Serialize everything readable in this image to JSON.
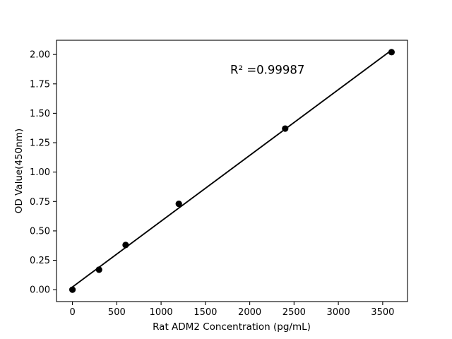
{
  "figure": {
    "background_color": "#ffffff",
    "foreground_color": "#000000"
  },
  "chart_data": {
    "type": "scatter",
    "title": "",
    "xlabel": "Rat ADM2 Concentration (pg/mL)",
    "ylabel": "OD Value(450nm)",
    "x": [
      0,
      300,
      600,
      1200,
      2400,
      3600
    ],
    "y": [
      0.0,
      0.17,
      0.38,
      0.73,
      1.37,
      2.02
    ],
    "fit_line": {
      "x": [
        0,
        3600
      ],
      "y": [
        0.023,
        2.037
      ]
    },
    "r_squared_label": "R² =0.99987",
    "annotation_position": {
      "x": 2200,
      "y": 1.87
    },
    "xlim": [
      -180,
      3780
    ],
    "ylim": [
      -0.101,
      2.121
    ],
    "xticks": {
      "values": [
        0,
        500,
        1000,
        1500,
        2000,
        2500,
        3000,
        3500
      ],
      "labels": [
        "0",
        "500",
        "1000",
        "1500",
        "2000",
        "2500",
        "3000",
        "3500"
      ]
    },
    "yticks": {
      "values": [
        0.0,
        0.25,
        0.5,
        0.75,
        1.0,
        1.25,
        1.5,
        1.75,
        2.0
      ],
      "labels": [
        "0.00",
        "0.25",
        "0.50",
        "0.75",
        "1.00",
        "1.25",
        "1.50",
        "1.75",
        "2.00"
      ]
    },
    "grid": false,
    "legend": null,
    "marker_color": "#000000",
    "marker_radius": 4.6,
    "line_color": "#000000"
  }
}
